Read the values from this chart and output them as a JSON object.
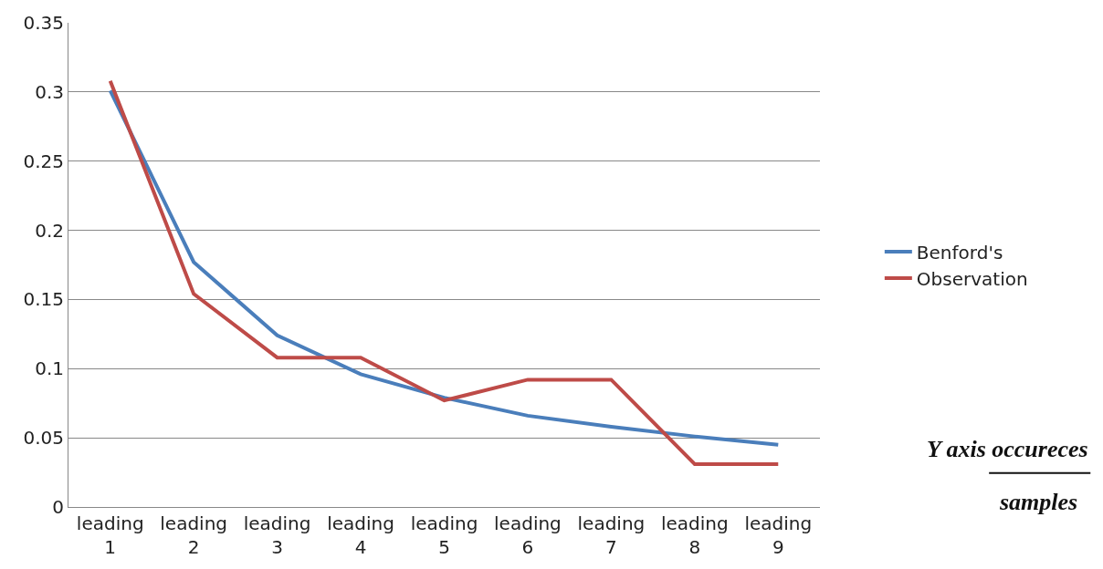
{
  "chart_data": {
    "type": "line",
    "categories": [
      "leading 1",
      "leading 2",
      "leading 3",
      "leading 4",
      "leading 5",
      "leading 6",
      "leading 7",
      "leading 8",
      "leading 9"
    ],
    "series": [
      {
        "name": "Benford's",
        "color": "#4a7ebb",
        "values": [
          0.301,
          0.177,
          0.124,
          0.096,
          0.079,
          0.066,
          0.058,
          0.051,
          0.045
        ]
      },
      {
        "name": "Observation",
        "color": "#be4b48",
        "values": [
          0.308,
          0.154,
          0.108,
          0.108,
          0.077,
          0.092,
          0.092,
          0.031,
          0.031
        ]
      }
    ],
    "ylim": [
      0,
      0.35
    ],
    "yticks": [
      0,
      0.05,
      0.1,
      0.15,
      0.2,
      0.25,
      0.3,
      0.35
    ],
    "grid": "y",
    "legend": "right",
    "marker": "none",
    "line_style": "solid",
    "annotations": [
      "Y axis occureces",
      "samples"
    ]
  }
}
